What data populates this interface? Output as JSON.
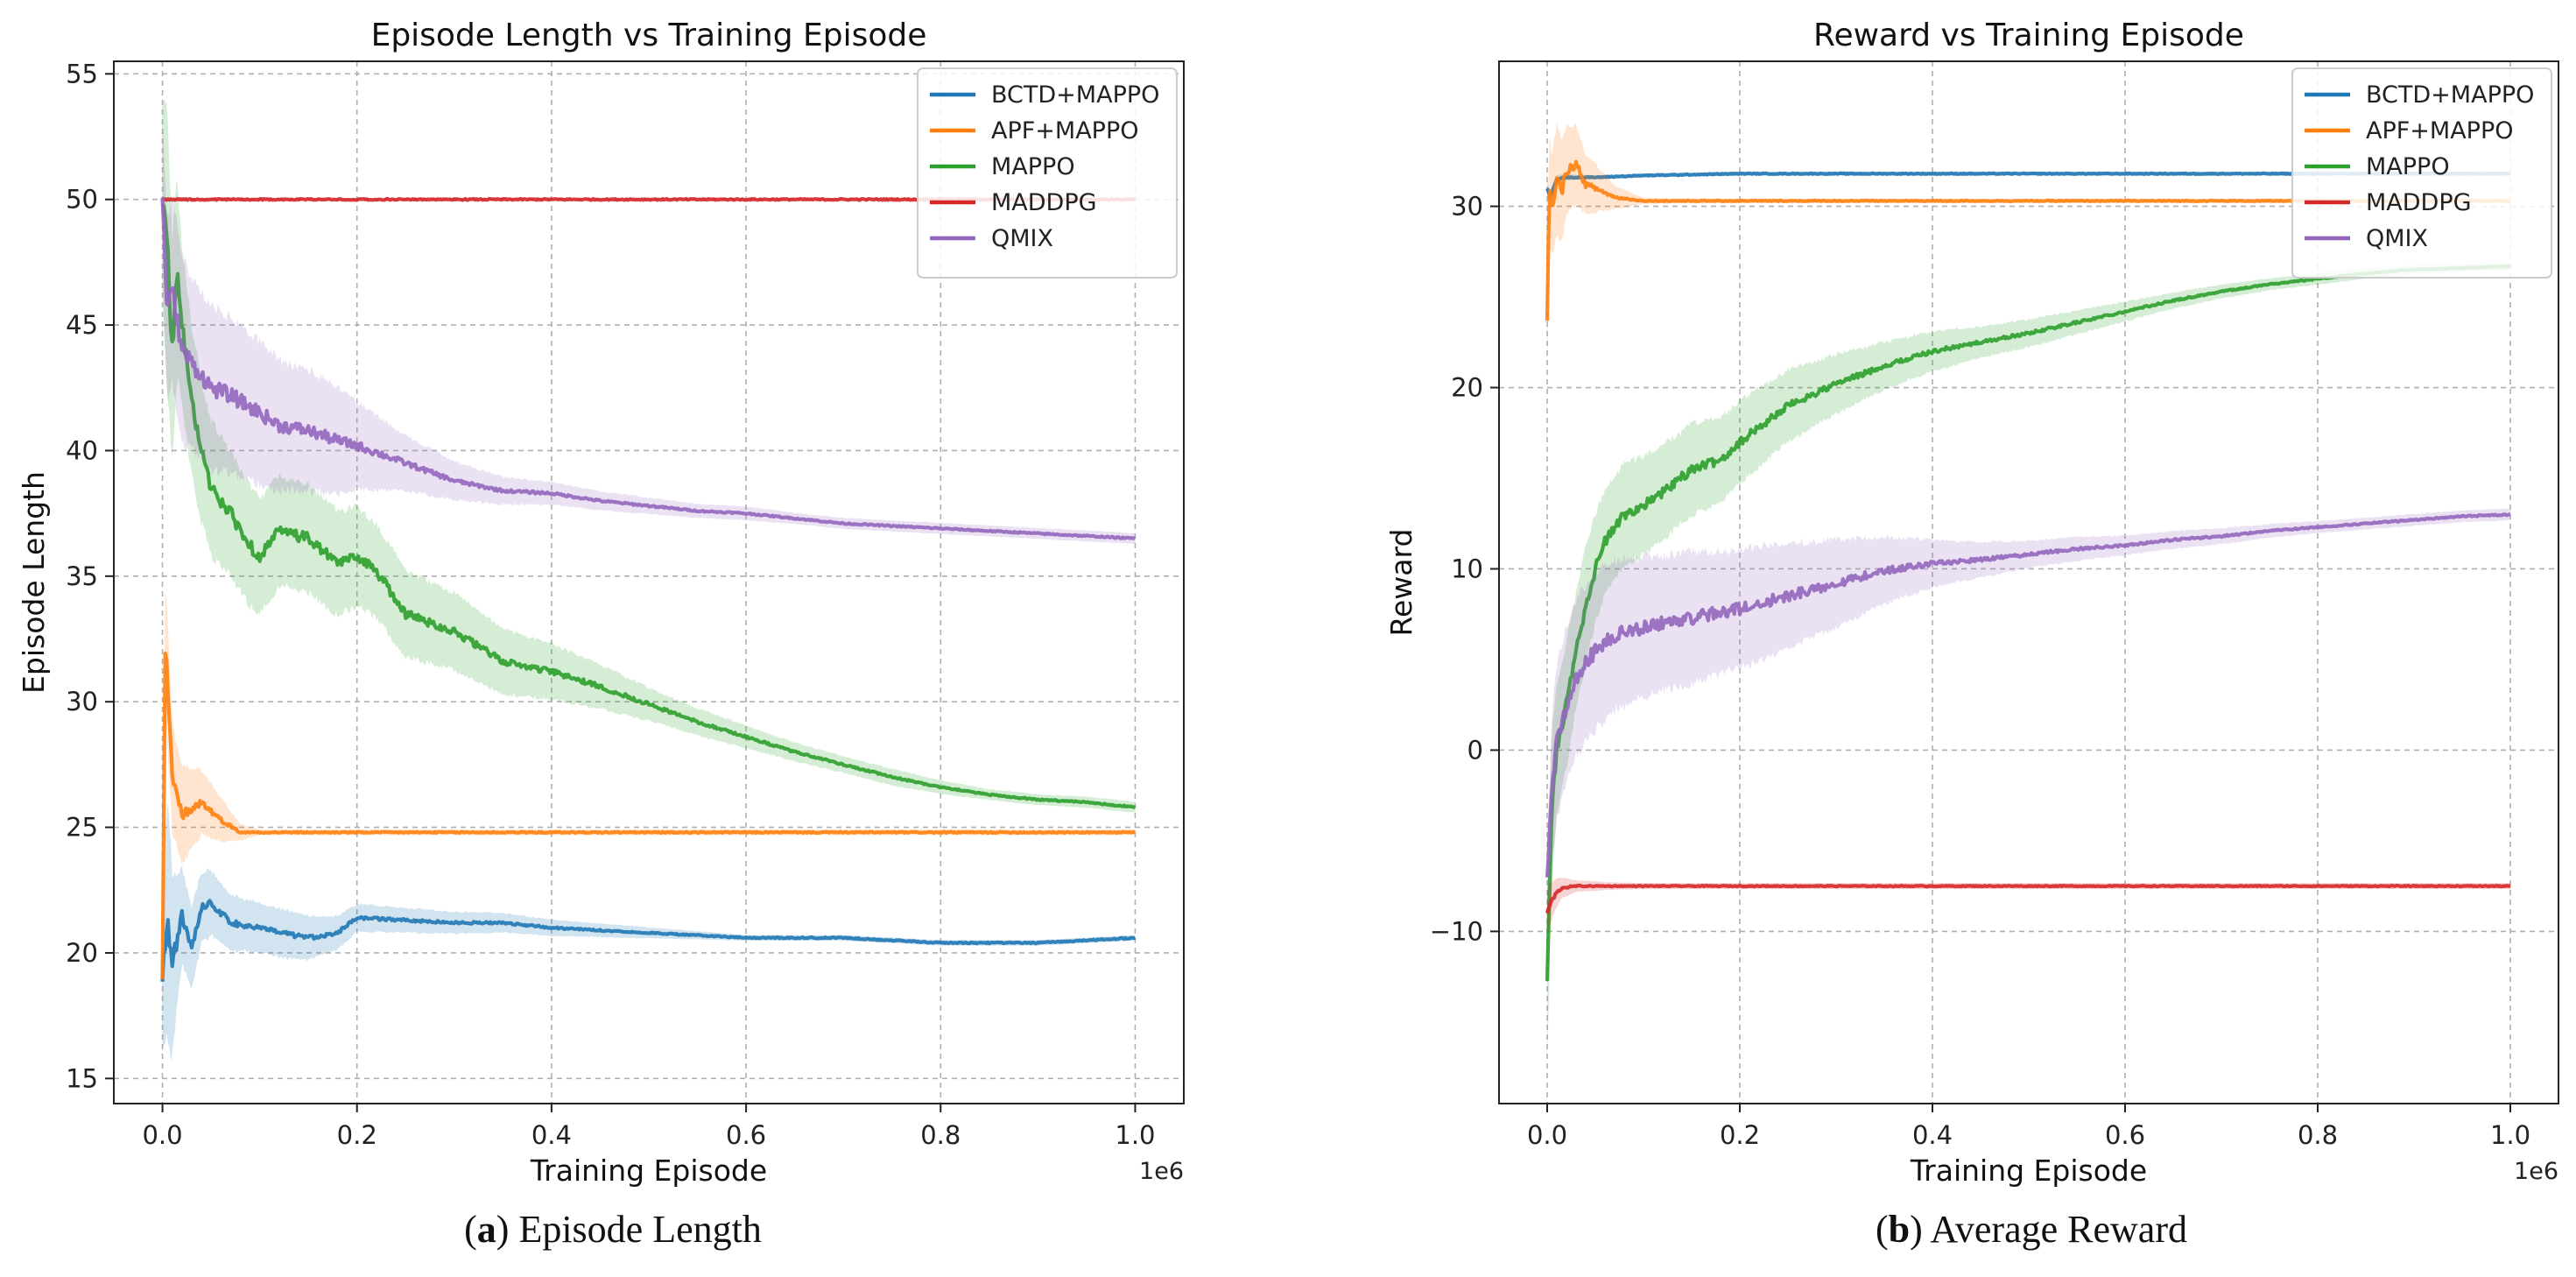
{
  "chart_data": [
    {
      "type": "line",
      "title": "Episode Length vs Training Episode",
      "xlabel": "Training Episode",
      "ylabel": "Episode Length",
      "x_offset_label": "1e6",
      "xlim": [
        -0.05,
        1.05
      ],
      "ylim": [
        14,
        55.5
      ],
      "xticks": [
        0.0,
        0.2,
        0.4,
        0.6,
        0.8,
        1.0
      ],
      "xtick_labels": [
        "0.0",
        "0.2",
        "0.4",
        "0.6",
        "0.8",
        "1.0"
      ],
      "yticks": [
        15,
        20,
        25,
        30,
        35,
        40,
        45,
        50,
        55
      ],
      "ytick_labels": [
        "15",
        "20",
        "25",
        "30",
        "35",
        "40",
        "45",
        "50",
        "55"
      ],
      "grid": true,
      "legend_position": "top-right",
      "series": [
        {
          "name": "BCTD+MAPPO",
          "color": "#1f77b4",
          "x": [
            0,
            0.005,
            0.01,
            0.015,
            0.02,
            0.03,
            0.04,
            0.05,
            0.07,
            0.1,
            0.12,
            0.15,
            0.18,
            0.2,
            0.25,
            0.3,
            0.35,
            0.4,
            0.45,
            0.5,
            0.55,
            0.6,
            0.7,
            0.8,
            0.9,
            1.0
          ],
          "y": [
            19.0,
            21.5,
            19.5,
            20.5,
            21.5,
            20.2,
            21.8,
            22.0,
            21.2,
            21.0,
            20.8,
            20.6,
            20.8,
            21.4,
            21.3,
            21.2,
            21.2,
            21.0,
            20.9,
            20.8,
            20.7,
            20.6,
            20.6,
            20.4,
            20.4,
            20.6
          ],
          "band": [
            2.5,
            4.5,
            3.5,
            2.5,
            1.8,
            1.5,
            1.3,
            1.2,
            1.0,
            0.9,
            0.9,
            0.8,
            0.6,
            0.5,
            0.45,
            0.4,
            0.35,
            0.3,
            0.25,
            0.2,
            0.15,
            0.1,
            0.1,
            0.1,
            0.1,
            0.1
          ]
        },
        {
          "name": "APF+MAPPO",
          "color": "#ff7f0e",
          "x": [
            0,
            0.003,
            0.01,
            0.02,
            0.04,
            0.06,
            0.08,
            0.1,
            0.2,
            0.4,
            0.6,
            0.8,
            1.0
          ],
          "y": [
            19.0,
            32.5,
            27.0,
            25.5,
            26.0,
            25.3,
            24.8,
            24.8,
            24.8,
            24.8,
            24.8,
            24.8,
            24.8
          ],
          "band": [
            3.0,
            2.5,
            2.0,
            1.8,
            1.2,
            0.8,
            0.3,
            0.1,
            0.1,
            0.1,
            0.1,
            0.1,
            0.1
          ]
        },
        {
          "name": "MAPPO",
          "color": "#2ca02c",
          "x": [
            0,
            0.005,
            0.01,
            0.015,
            0.02,
            0.03,
            0.04,
            0.05,
            0.07,
            0.09,
            0.1,
            0.12,
            0.15,
            0.18,
            0.2,
            0.22,
            0.25,
            0.3,
            0.35,
            0.4,
            0.45,
            0.5,
            0.55,
            0.6,
            0.65,
            0.7,
            0.75,
            0.8,
            0.85,
            0.9,
            0.95,
            1.0
          ],
          "y": [
            50.0,
            48.0,
            44.0,
            47.0,
            45.0,
            42.0,
            40.0,
            38.5,
            37.5,
            36.2,
            35.8,
            36.8,
            36.5,
            35.5,
            35.8,
            35.2,
            33.5,
            32.8,
            31.6,
            31.2,
            30.6,
            29.9,
            29.2,
            28.6,
            28.0,
            27.5,
            27.0,
            26.6,
            26.3,
            26.1,
            26.0,
            25.8
          ],
          "band": [
            3.5,
            5.0,
            4.0,
            3.5,
            3.0,
            2.8,
            2.6,
            2.5,
            2.3,
            2.2,
            2.1,
            2.0,
            2.0,
            1.9,
            1.8,
            1.7,
            1.6,
            1.4,
            1.2,
            1.0,
            0.8,
            0.6,
            0.5,
            0.4,
            0.35,
            0.3,
            0.3,
            0.25,
            0.2,
            0.2,
            0.2,
            0.2
          ]
        },
        {
          "name": "MADDPG",
          "color": "#d62728",
          "x": [
            0,
            0.2,
            0.4,
            0.6,
            0.8,
            1.0
          ],
          "y": [
            50.0,
            50.0,
            50.0,
            50.0,
            50.0,
            50.0
          ],
          "band": [
            0.05,
            0.05,
            0.05,
            0.05,
            0.05,
            0.05
          ]
        },
        {
          "name": "QMIX",
          "color": "#9467bd",
          "x": [
            0,
            0.005,
            0.01,
            0.02,
            0.03,
            0.05,
            0.07,
            0.1,
            0.12,
            0.15,
            0.18,
            0.2,
            0.25,
            0.3,
            0.35,
            0.4,
            0.45,
            0.5,
            0.55,
            0.6,
            0.65,
            0.7,
            0.75,
            0.8,
            0.85,
            0.9,
            0.95,
            1.0
          ],
          "y": [
            50.0,
            45.5,
            46.5,
            44.0,
            43.5,
            42.5,
            42.2,
            41.5,
            41.0,
            40.8,
            40.4,
            40.2,
            39.5,
            38.8,
            38.4,
            38.3,
            38.0,
            37.8,
            37.6,
            37.5,
            37.3,
            37.1,
            37.0,
            36.9,
            36.8,
            36.7,
            36.6,
            36.5
          ],
          "band": [
            3.0,
            3.5,
            3.5,
            3.3,
            3.2,
            3.0,
            2.8,
            2.6,
            2.4,
            2.2,
            2.0,
            1.6,
            1.0,
            0.7,
            0.5,
            0.4,
            0.35,
            0.3,
            0.25,
            0.25,
            0.2,
            0.2,
            0.2,
            0.2,
            0.2,
            0.2,
            0.2,
            0.2
          ]
        }
      ]
    },
    {
      "type": "line",
      "title": "Reward vs Training Episode",
      "xlabel": "Training Episode",
      "ylabel": "Reward",
      "x_offset_label": "1e6",
      "xlim": [
        -0.05,
        1.05
      ],
      "ylim": [
        -19.5,
        38.0
      ],
      "xticks": [
        0.0,
        0.2,
        0.4,
        0.6,
        0.8,
        1.0
      ],
      "xtick_labels": [
        "0.0",
        "0.2",
        "0.4",
        "0.6",
        "0.8",
        "1.0"
      ],
      "yticks": [
        -10,
        0,
        10,
        20,
        30
      ],
      "ytick_labels": [
        "−10",
        "0",
        "10",
        "20",
        "30"
      ],
      "grid": true,
      "legend_position": "top-right",
      "series": [
        {
          "name": "BCTD+MAPPO",
          "color": "#1f77b4",
          "x": [
            0,
            0.003,
            0.01,
            0.02,
            0.05,
            0.1,
            0.2,
            0.4,
            0.6,
            0.8,
            1.0
          ],
          "y": [
            31.0,
            30.5,
            31.5,
            31.6,
            31.6,
            31.7,
            31.8,
            31.8,
            31.8,
            31.8,
            31.8
          ],
          "band": [
            0.4,
            0.3,
            0.2,
            0.15,
            0.1,
            0.1,
            0.1,
            0.1,
            0.1,
            0.1,
            0.1
          ]
        },
        {
          "name": "APF+MAPPO",
          "color": "#ff7f0e",
          "x": [
            0,
            0.002,
            0.005,
            0.01,
            0.015,
            0.02,
            0.03,
            0.04,
            0.05,
            0.07,
            0.1,
            0.2,
            0.4,
            0.6,
            0.8,
            1.0
          ],
          "y": [
            23.5,
            31.0,
            30.0,
            31.5,
            30.8,
            32.0,
            32.3,
            31.2,
            31.0,
            30.5,
            30.3,
            30.3,
            30.3,
            30.3,
            30.3,
            30.3
          ],
          "band": [
            2.5,
            3.0,
            2.5,
            2.8,
            2.5,
            2.3,
            2.0,
            1.5,
            1.2,
            0.6,
            0.15,
            0.1,
            0.1,
            0.1,
            0.1,
            0.1
          ]
        },
        {
          "name": "MAPPO",
          "color": "#2ca02c",
          "x": [
            0,
            0.005,
            0.01,
            0.02,
            0.03,
            0.04,
            0.05,
            0.06,
            0.08,
            0.1,
            0.12,
            0.15,
            0.18,
            0.2,
            0.25,
            0.3,
            0.35,
            0.4,
            0.45,
            0.5,
            0.55,
            0.6,
            0.65,
            0.7,
            0.75,
            0.8,
            0.85,
            0.9,
            0.95,
            1.0
          ],
          "y": [
            -12.5,
            -3.0,
            0.0,
            2.5,
            5.5,
            8.0,
            10.0,
            11.5,
            13.0,
            13.5,
            14.2,
            15.5,
            16.0,
            17.0,
            19.0,
            20.2,
            21.2,
            22.0,
            22.5,
            23.0,
            23.6,
            24.2,
            24.8,
            25.3,
            25.7,
            26.0,
            26.3,
            26.5,
            26.6,
            26.7
          ],
          "band": [
            4.0,
            4.0,
            3.5,
            3.2,
            3.0,
            2.9,
            2.8,
            2.7,
            2.6,
            2.5,
            2.4,
            2.3,
            2.2,
            2.1,
            1.8,
            1.5,
            1.2,
            1.0,
            0.8,
            0.7,
            0.6,
            0.5,
            0.4,
            0.35,
            0.3,
            0.3,
            0.25,
            0.25,
            0.2,
            0.2
          ]
        },
        {
          "name": "MADDPG",
          "color": "#d62728",
          "x": [
            0,
            0.003,
            0.008,
            0.015,
            0.03,
            0.06,
            0.1,
            0.2,
            0.4,
            0.6,
            0.8,
            1.0
          ],
          "y": [
            -9.0,
            -8.5,
            -8.0,
            -7.6,
            -7.5,
            -7.5,
            -7.5,
            -7.5,
            -7.5,
            -7.5,
            -7.5,
            -7.5
          ],
          "band": [
            1.2,
            1.0,
            0.8,
            0.5,
            0.3,
            0.2,
            0.15,
            0.15,
            0.15,
            0.15,
            0.15,
            0.15
          ]
        },
        {
          "name": "QMIX",
          "color": "#9467bd",
          "x": [
            0,
            0.005,
            0.01,
            0.02,
            0.03,
            0.05,
            0.07,
            0.1,
            0.15,
            0.2,
            0.25,
            0.3,
            0.35,
            0.4,
            0.45,
            0.5,
            0.55,
            0.6,
            0.65,
            0.7,
            0.75,
            0.8,
            0.85,
            0.9,
            0.95,
            1.0
          ],
          "y": [
            -7.0,
            -2.0,
            0.5,
            2.5,
            4.0,
            5.5,
            6.3,
            6.8,
            7.3,
            7.8,
            8.5,
            9.2,
            9.9,
            10.3,
            10.5,
            10.8,
            11.1,
            11.3,
            11.6,
            11.8,
            12.1,
            12.3,
            12.5,
            12.7,
            12.9,
            13.0
          ],
          "band": [
            2.0,
            3.5,
            4.0,
            4.0,
            4.0,
            4.0,
            3.8,
            3.5,
            3.3,
            3.0,
            2.7,
            2.2,
            1.7,
            1.2,
            0.9,
            0.7,
            0.6,
            0.5,
            0.45,
            0.4,
            0.35,
            0.3,
            0.3,
            0.3,
            0.3,
            0.3
          ]
        }
      ]
    }
  ],
  "captions": {
    "a_letter": "a",
    "a_text": " Episode Length",
    "b_letter": "b",
    "b_text": " Average Reward"
  }
}
